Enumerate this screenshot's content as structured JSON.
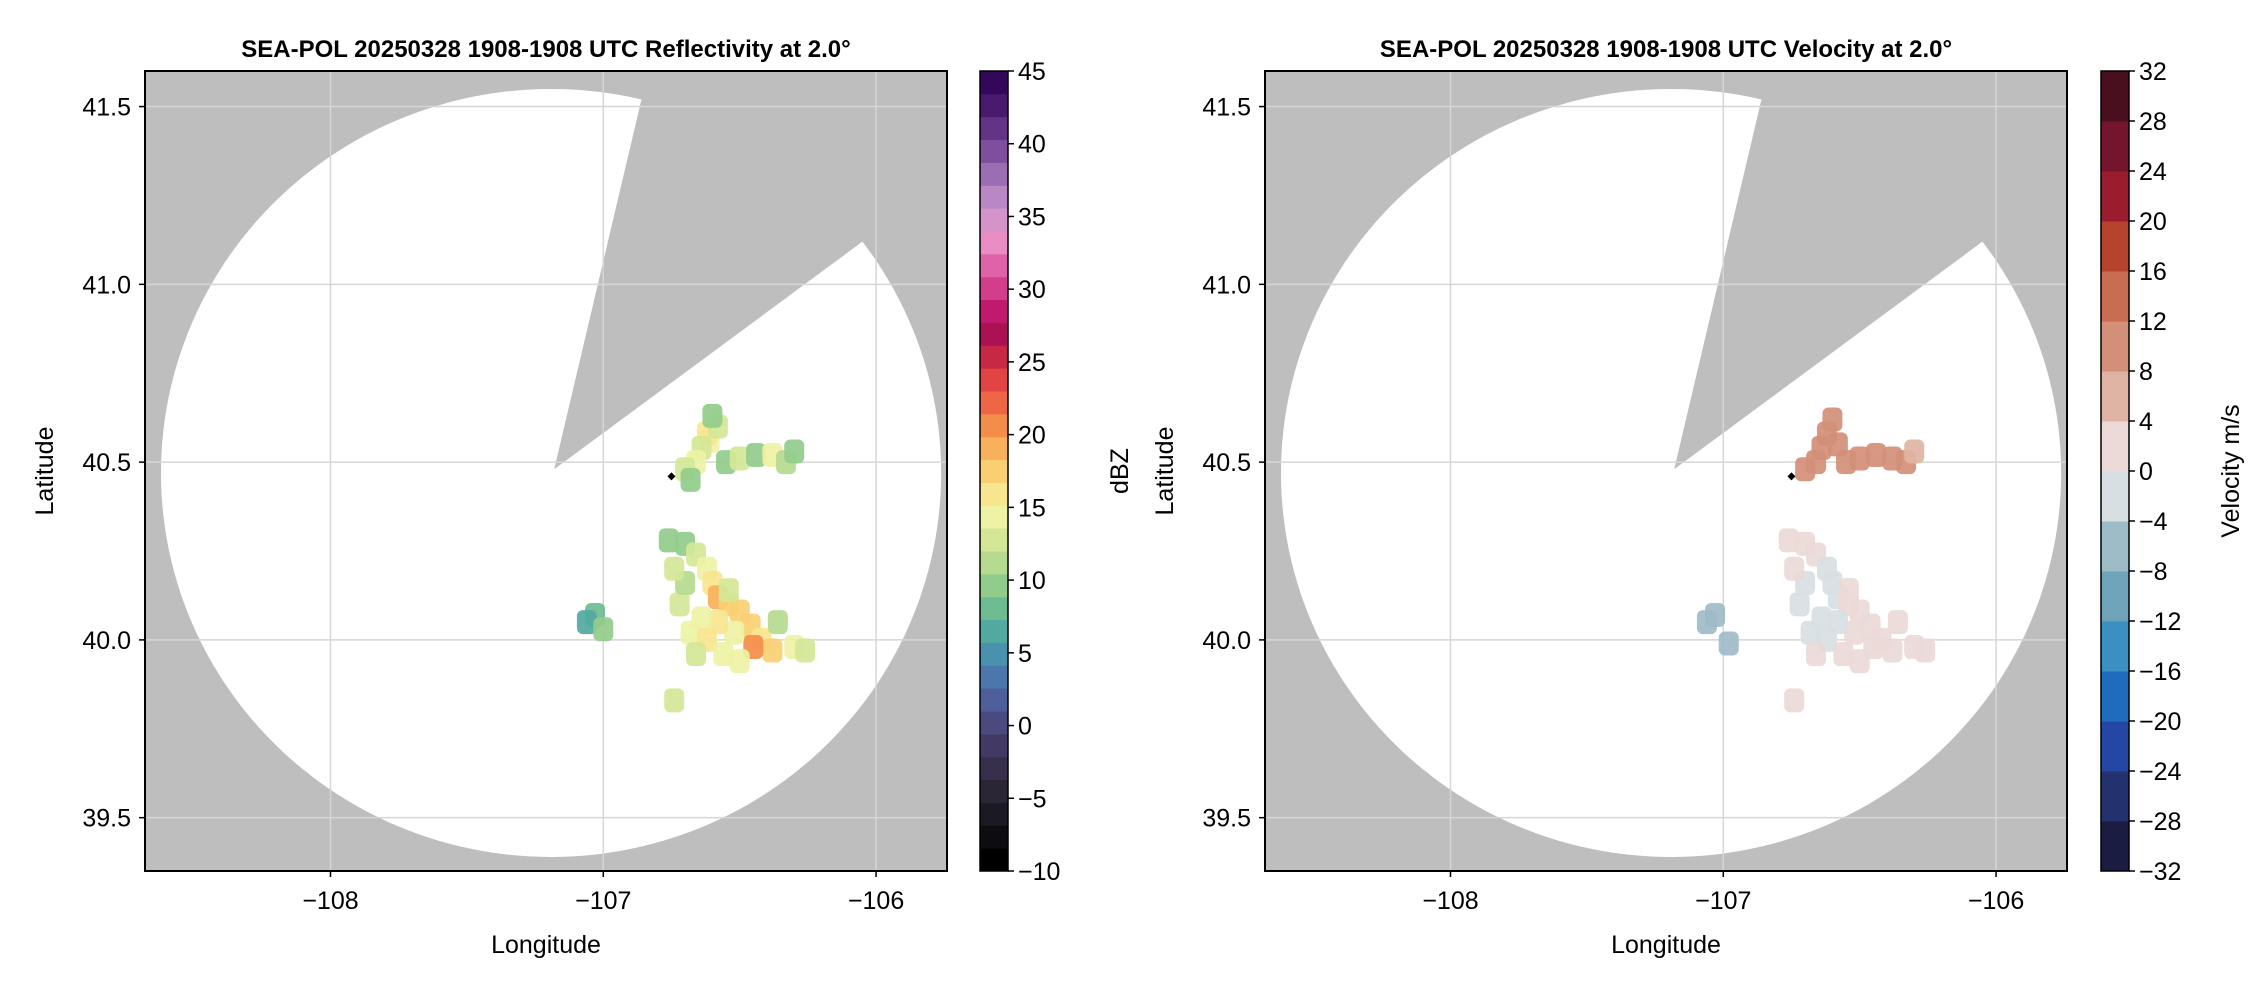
{
  "colors": {
    "outside_coverage": "#bebebe",
    "inside_coverage": "#ffffff",
    "grid": "#d6d6d6",
    "frame": "#000000",
    "radar_marker": "#000000"
  },
  "chart_data": [
    {
      "type": "heatmap",
      "title": "SEA-POL 20250328 1908-1908 UTC Reflectivity at 2.0°",
      "xlabel": "Longitude",
      "ylabel": "Latitude",
      "xlim": [
        -108.68,
        -105.74
      ],
      "ylim": [
        39.35,
        41.6
      ],
      "xticks": [
        -108,
        -107,
        -106
      ],
      "xtick_labels": [
        "−108",
        "−107",
        "−106"
      ],
      "yticks": [
        39.5,
        40.0,
        40.5,
        41.0,
        41.5
      ],
      "ytick_labels": [
        "39.5",
        "40.0",
        "40.5",
        "41.0",
        "41.5"
      ],
      "grid": true,
      "radar_location": {
        "lon": -106.75,
        "lat": 40.46
      },
      "coverage": {
        "center_lon": -107.18,
        "center_lat": 40.48,
        "radius_lon": 1.43,
        "radius_lat": 1.08,
        "blocked_sector_from": [
          -106.05,
          41.12
        ],
        "blocked_sector_to": [
          -106.86,
          41.52
        ]
      },
      "colorbar": {
        "label": "dBZ",
        "min": -10,
        "max": 45,
        "ticks": [
          -10,
          -5,
          0,
          5,
          10,
          15,
          20,
          25,
          30,
          35,
          40,
          45
        ],
        "tick_labels": [
          "−10",
          "−5",
          "0",
          "5",
          "10",
          "15",
          "20",
          "25",
          "30",
          "35",
          "40",
          "45"
        ],
        "colors": [
          "#000000",
          "#0d0d11",
          "#1b1a24",
          "#2a2636",
          "#382f4c",
          "#423a64",
          "#4a4a80",
          "#4e5e9a",
          "#4c77ac",
          "#4a91b0",
          "#52a9a0",
          "#6dbc91",
          "#92cc8b",
          "#b6da8f",
          "#d4e797",
          "#eef2a4",
          "#f7e68e",
          "#f9cf72",
          "#f8b05a",
          "#f48c4a",
          "#ee6645",
          "#e24443",
          "#c72945",
          "#ac1154",
          "#c11a6c",
          "#d33e8c",
          "#e063a8",
          "#e98dc4",
          "#d493c9",
          "#b987c4",
          "#9b6db3",
          "#7f4f9e",
          "#633386",
          "#4a1a6e",
          "#33085a"
        ]
      },
      "series": [
        {
          "lon": -106.61,
          "lat": 40.56,
          "value": 14
        },
        {
          "lon": -106.62,
          "lat": 40.58,
          "value": 16
        },
        {
          "lon": -106.64,
          "lat": 40.54,
          "value": 13
        },
        {
          "lon": -106.58,
          "lat": 40.6,
          "value": 12
        },
        {
          "lon": -106.6,
          "lat": 40.63,
          "value": 10
        },
        {
          "lon": -106.66,
          "lat": 40.5,
          "value": 15
        },
        {
          "lon": -106.7,
          "lat": 40.48,
          "value": 12
        },
        {
          "lon": -106.55,
          "lat": 40.5,
          "value": 10
        },
        {
          "lon": -106.5,
          "lat": 40.51,
          "value": 12
        },
        {
          "lon": -106.44,
          "lat": 40.52,
          "value": 9
        },
        {
          "lon": -106.38,
          "lat": 40.52,
          "value": 14
        },
        {
          "lon": -106.33,
          "lat": 40.5,
          "value": 11
        },
        {
          "lon": -106.3,
          "lat": 40.53,
          "value": 9
        },
        {
          "lon": -106.68,
          "lat": 40.45,
          "value": 9
        },
        {
          "lon": -106.76,
          "lat": 40.28,
          "value": 9
        },
        {
          "lon": -106.7,
          "lat": 40.27,
          "value": 10
        },
        {
          "lon": -106.66,
          "lat": 40.24,
          "value": 12
        },
        {
          "lon": -106.62,
          "lat": 40.2,
          "value": 14
        },
        {
          "lon": -106.6,
          "lat": 40.16,
          "value": 16
        },
        {
          "lon": -106.58,
          "lat": 40.12,
          "value": 19
        },
        {
          "lon": -106.54,
          "lat": 40.1,
          "value": 17
        },
        {
          "lon": -106.5,
          "lat": 40.08,
          "value": 18
        },
        {
          "lon": -106.46,
          "lat": 40.04,
          "value": 17
        },
        {
          "lon": -106.42,
          "lat": 40.0,
          "value": 16
        },
        {
          "lon": -106.38,
          "lat": 39.97,
          "value": 17
        },
        {
          "lon": -106.45,
          "lat": 39.98,
          "value": 20
        },
        {
          "lon": -106.52,
          "lat": 40.02,
          "value": 15
        },
        {
          "lon": -106.58,
          "lat": 40.05,
          "value": 16
        },
        {
          "lon": -106.64,
          "lat": 40.06,
          "value": 14
        },
        {
          "lon": -106.68,
          "lat": 40.02,
          "value": 15
        },
        {
          "lon": -106.62,
          "lat": 40.0,
          "value": 16
        },
        {
          "lon": -106.56,
          "lat": 39.96,
          "value": 15
        },
        {
          "lon": -106.5,
          "lat": 39.94,
          "value": 14
        },
        {
          "lon": -106.66,
          "lat": 39.96,
          "value": 12
        },
        {
          "lon": -106.72,
          "lat": 40.1,
          "value": 13
        },
        {
          "lon": -106.7,
          "lat": 40.16,
          "value": 11
        },
        {
          "lon": -106.74,
          "lat": 40.2,
          "value": 12
        },
        {
          "lon": -106.3,
          "lat": 39.98,
          "value": 14
        },
        {
          "lon": -106.26,
          "lat": 39.97,
          "value": 12
        },
        {
          "lon": -106.36,
          "lat": 40.05,
          "value": 11
        },
        {
          "lon": -106.54,
          "lat": 40.14,
          "value": 12
        },
        {
          "lon": -107.03,
          "lat": 40.07,
          "value": 8
        },
        {
          "lon": -107.06,
          "lat": 40.05,
          "value": 7
        },
        {
          "lon": -107.0,
          "lat": 40.03,
          "value": 9
        },
        {
          "lon": -106.74,
          "lat": 39.83,
          "value": 12
        }
      ]
    },
    {
      "type": "heatmap",
      "title": "SEA-POL 20250328 1908-1908 UTC Velocity at 2.0°",
      "xlabel": "Longitude",
      "ylabel": "Latitude",
      "xlim": [
        -108.68,
        -105.74
      ],
      "ylim": [
        39.35,
        41.6
      ],
      "xticks": [
        -108,
        -107,
        -106
      ],
      "xtick_labels": [
        "−108",
        "−107",
        "−106"
      ],
      "yticks": [
        39.5,
        40.0,
        40.5,
        41.0,
        41.5
      ],
      "ytick_labels": [
        "39.5",
        "40.0",
        "40.5",
        "41.0",
        "41.5"
      ],
      "grid": true,
      "radar_location": {
        "lon": -106.75,
        "lat": 40.46
      },
      "coverage": {
        "center_lon": -107.18,
        "center_lat": 40.48,
        "radius_lon": 1.43,
        "radius_lat": 1.08,
        "blocked_sector_from": [
          -106.05,
          41.12
        ],
        "blocked_sector_to": [
          -106.86,
          41.52
        ]
      },
      "colorbar": {
        "label": "Velocity m/s",
        "min": -32,
        "max": 32,
        "ticks": [
          -32,
          -28,
          -24,
          -20,
          -16,
          -12,
          -8,
          -4,
          0,
          4,
          8,
          12,
          16,
          20,
          24,
          28,
          32
        ],
        "tick_labels": [
          "−32",
          "−28",
          "−24",
          "−20",
          "−16",
          "−12",
          "−8",
          "−4",
          "0",
          "4",
          "8",
          "12",
          "16",
          "20",
          "24",
          "28",
          "32"
        ],
        "colors": [
          "#1a1c42",
          "#23316f",
          "#2447a6",
          "#1f6bbd",
          "#3b8fc1",
          "#6fa3ba",
          "#9ebbc8",
          "#d8dfe3",
          "#ead9d7",
          "#dfb4a5",
          "#d38f78",
          "#c86c52",
          "#b5432e",
          "#9b1d2d",
          "#75142d",
          "#4a0f1e"
        ]
      },
      "series": [
        {
          "lon": -106.62,
          "lat": 40.58,
          "value": 10
        },
        {
          "lon": -106.6,
          "lat": 40.62,
          "value": 11
        },
        {
          "lon": -106.64,
          "lat": 40.54,
          "value": 10
        },
        {
          "lon": -106.58,
          "lat": 40.55,
          "value": 11
        },
        {
          "lon": -106.66,
          "lat": 40.5,
          "value": 9
        },
        {
          "lon": -106.7,
          "lat": 40.48,
          "value": 9
        },
        {
          "lon": -106.55,
          "lat": 40.5,
          "value": 8
        },
        {
          "lon": -106.5,
          "lat": 40.51,
          "value": 9
        },
        {
          "lon": -106.44,
          "lat": 40.52,
          "value": 8
        },
        {
          "lon": -106.38,
          "lat": 40.51,
          "value": 10
        },
        {
          "lon": -106.33,
          "lat": 40.5,
          "value": 8
        },
        {
          "lon": -106.3,
          "lat": 40.53,
          "value": 7
        },
        {
          "lon": -106.76,
          "lat": 40.28,
          "value": 2
        },
        {
          "lon": -106.7,
          "lat": 40.27,
          "value": 1
        },
        {
          "lon": -106.66,
          "lat": 40.24,
          "value": 1
        },
        {
          "lon": -106.62,
          "lat": 40.2,
          "value": -1
        },
        {
          "lon": -106.6,
          "lat": 40.16,
          "value": -2
        },
        {
          "lon": -106.58,
          "lat": 40.12,
          "value": -1
        },
        {
          "lon": -106.54,
          "lat": 40.1,
          "value": 1
        },
        {
          "lon": -106.5,
          "lat": 40.08,
          "value": 2
        },
        {
          "lon": -106.46,
          "lat": 40.04,
          "value": 2
        },
        {
          "lon": -106.42,
          "lat": 40.0,
          "value": 3
        },
        {
          "lon": -106.38,
          "lat": 39.97,
          "value": 2
        },
        {
          "lon": -106.45,
          "lat": 39.98,
          "value": 2
        },
        {
          "lon": -106.52,
          "lat": 40.02,
          "value": 1
        },
        {
          "lon": -106.58,
          "lat": 40.05,
          "value": -2
        },
        {
          "lon": -106.64,
          "lat": 40.06,
          "value": -3
        },
        {
          "lon": -106.68,
          "lat": 40.02,
          "value": -3
        },
        {
          "lon": -106.62,
          "lat": 40.0,
          "value": -2
        },
        {
          "lon": -106.56,
          "lat": 39.96,
          "value": 1
        },
        {
          "lon": -106.5,
          "lat": 39.94,
          "value": 2
        },
        {
          "lon": -106.66,
          "lat": 39.96,
          "value": 1
        },
        {
          "lon": -106.72,
          "lat": 40.1,
          "value": -2
        },
        {
          "lon": -106.7,
          "lat": 40.16,
          "value": -1
        },
        {
          "lon": -106.74,
          "lat": 40.2,
          "value": 1
        },
        {
          "lon": -106.3,
          "lat": 39.98,
          "value": 2
        },
        {
          "lon": -106.26,
          "lat": 39.97,
          "value": 1
        },
        {
          "lon": -106.36,
          "lat": 40.05,
          "value": 2
        },
        {
          "lon": -106.54,
          "lat": 40.14,
          "value": 1
        },
        {
          "lon": -106.98,
          "lat": 39.99,
          "value": -7
        },
        {
          "lon": -107.03,
          "lat": 40.07,
          "value": -5
        },
        {
          "lon": -107.06,
          "lat": 40.05,
          "value": -6
        },
        {
          "lon": -106.74,
          "lat": 39.83,
          "value": 1
        }
      ]
    }
  ]
}
